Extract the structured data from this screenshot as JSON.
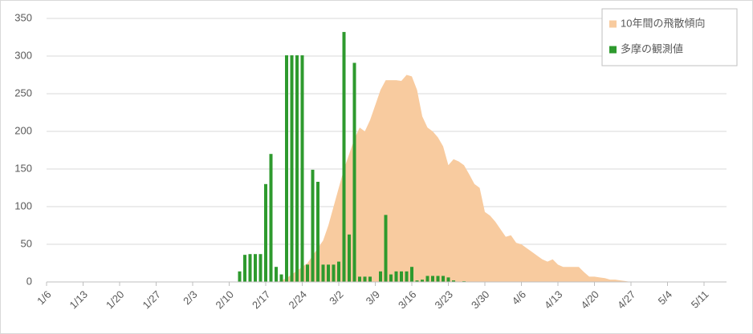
{
  "chart_data": {
    "type": "combo",
    "categories": [
      "1/6",
      null,
      null,
      null,
      null,
      null,
      null,
      "1/13",
      null,
      null,
      null,
      null,
      null,
      null,
      "1/20",
      null,
      null,
      null,
      null,
      null,
      null,
      "1/27",
      null,
      null,
      null,
      null,
      null,
      null,
      "2/3",
      null,
      null,
      null,
      null,
      null,
      null,
      "2/10",
      null,
      null,
      null,
      null,
      null,
      null,
      "2/17",
      null,
      null,
      null,
      null,
      null,
      null,
      "2/24",
      null,
      null,
      null,
      null,
      null,
      null,
      "3/2",
      null,
      null,
      null,
      null,
      null,
      null,
      "3/9",
      null,
      null,
      null,
      null,
      null,
      null,
      "3/16",
      null,
      null,
      null,
      null,
      null,
      null,
      "3/23",
      null,
      null,
      null,
      null,
      null,
      null,
      "3/30",
      null,
      null,
      null,
      null,
      null,
      null,
      "4/6",
      null,
      null,
      null,
      null,
      null,
      null,
      "4/13",
      null,
      null,
      null,
      null,
      null,
      null,
      "4/20",
      null,
      null,
      null,
      null,
      null,
      null,
      "4/27",
      null,
      null,
      null,
      null,
      null,
      null,
      "5/4",
      null,
      null,
      null,
      null,
      null,
      null,
      "5/11",
      null,
      null,
      null
    ],
    "series": [
      {
        "name": "10年間の飛散傾向",
        "type": "area",
        "color": "#f8cb9f",
        "values": [
          0,
          0,
          0,
          0,
          0,
          0,
          0,
          0,
          0,
          0,
          0,
          0,
          0,
          0,
          0,
          0,
          0,
          0,
          0,
          0,
          0,
          0,
          0,
          0,
          0,
          0,
          0,
          0,
          0,
          0,
          0,
          0,
          0,
          0,
          0,
          0,
          0,
          0,
          0,
          0,
          0,
          0,
          0,
          0,
          0,
          2,
          5,
          10,
          15,
          20,
          25,
          35,
          45,
          55,
          75,
          100,
          125,
          150,
          170,
          190,
          205,
          200,
          215,
          235,
          255,
          268,
          268,
          268,
          267,
          275,
          273,
          255,
          220,
          205,
          200,
          192,
          180,
          155,
          163,
          160,
          155,
          143,
          130,
          125,
          93,
          88,
          80,
          70,
          60,
          62,
          52,
          50,
          45,
          40,
          35,
          30,
          27,
          30,
          23,
          20,
          20,
          20,
          20,
          13,
          7,
          7,
          6,
          5,
          3,
          3,
          2,
          1,
          0,
          0,
          0,
          0,
          0,
          0,
          0,
          0,
          0,
          0,
          0,
          0,
          0,
          0,
          0,
          0,
          0,
          0
        ]
      },
      {
        "name": "多摩の観測値",
        "type": "bar",
        "color": "#2e9a2e",
        "values": [
          0,
          0,
          0,
          0,
          0,
          0,
          0,
          0,
          0,
          0,
          0,
          0,
          0,
          0,
          0,
          0,
          0,
          0,
          0,
          0,
          0,
          0,
          0,
          0,
          0,
          0,
          0,
          0,
          0,
          0,
          0,
          0,
          0,
          0,
          0,
          0,
          0,
          14,
          36,
          37,
          37,
          37,
          130,
          170,
          20,
          10,
          301,
          301,
          301,
          301,
          23,
          149,
          133,
          23,
          23,
          23,
          27,
          332,
          63,
          291,
          7,
          7,
          7,
          0,
          14,
          89,
          10,
          14,
          14,
          14,
          20,
          2,
          3,
          8,
          8,
          8,
          8,
          6,
          2,
          0,
          1,
          0,
          0,
          0,
          0,
          0,
          0,
          0,
          0,
          0,
          0,
          0,
          0,
          0,
          0,
          0,
          0,
          0,
          0,
          0,
          0,
          0,
          0,
          0,
          0,
          0,
          0,
          0,
          0,
          0,
          0,
          0,
          0,
          0,
          0,
          0,
          0,
          0,
          0,
          0,
          0,
          0,
          0,
          0,
          0,
          0,
          0,
          0,
          0,
          0
        ]
      }
    ],
    "ylim": [
      0,
      350
    ],
    "yticks": [
      0,
      50,
      100,
      150,
      200,
      250,
      300,
      350
    ],
    "grid": true,
    "legend": "top-right"
  }
}
